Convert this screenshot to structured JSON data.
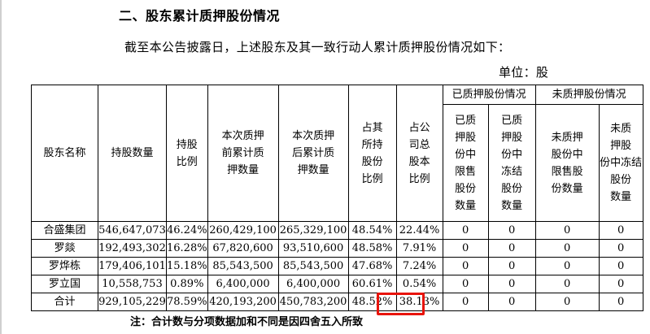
{
  "document": {
    "heading": "二、股东累计质押股份情况",
    "intro": "截至本公告披露日，上述股东及其一致行动人累计质押股份情况如下：",
    "unit": "单位：股",
    "note": "注：合计数与分项数据加和不同是因四舍五入所致"
  },
  "table": {
    "headers": {
      "name": "股东名称",
      "holding": "持股数量",
      "ratio": "持股\n比例",
      "before": "本次质押\n前累计质\n押数量",
      "after": "本次质押\n后累计质\n押数量",
      "own_pct": "占其\n所持\n股份\n比例",
      "total_pct": "占公\n司总\n股本\n比例",
      "pledged_group": "已质押股份情况",
      "pledged_restricted": "已质\n押股\n份中\n限售\n股份\n数量",
      "pledged_frozen": "已质\n押股\n份中\n冻结\n股份\n数量",
      "unpledged_group": "未质押股份情况",
      "unpledged_restricted": "未质押\n股份中\n限售股\n份数量",
      "unpledged_frozen": "未质\n押股\n份中冻结\n股份\n数量"
    },
    "rows": [
      {
        "name": "合盛集团",
        "holding": "546,647,073",
        "ratio": "46.24%",
        "before": "260,429,100",
        "after": "265,329,100",
        "own_pct": "48.54%",
        "total_pct": "22.44%",
        "pr": "0",
        "pf": "0",
        "ur": "0",
        "uf": "0"
      },
      {
        "name": "罗燚",
        "holding": "192,493,302",
        "ratio": "16.28%",
        "before": "67,820,600",
        "after": "93,510,600",
        "own_pct": "48.58%",
        "total_pct": "7.91%",
        "pr": "0",
        "pf": "0",
        "ur": "0",
        "uf": "0"
      },
      {
        "name": "罗烨栋",
        "holding": "179,406,101",
        "ratio": "15.18%",
        "before": "85,543,500",
        "after": "85,543,500",
        "own_pct": "47.68%",
        "total_pct": "7.24%",
        "pr": "0",
        "pf": "0",
        "ur": "0",
        "uf": "0"
      },
      {
        "name": "罗立国",
        "holding": "10,558,753",
        "ratio": "0.89%",
        "before": "6,400,000",
        "after": "6,400,000",
        "own_pct": "60.61%",
        "total_pct": "0.54%",
        "pr": "0",
        "pf": "0",
        "ur": "0",
        "uf": "0"
      },
      {
        "name": "合计",
        "holding": "929,105,229",
        "ratio": "78.59%",
        "before": "420,193,200",
        "after": "450,783,200",
        "own_pct": "48.52%",
        "total_pct": "38.13%",
        "pr": "0",
        "pf": "0",
        "ur": "0",
        "uf": "0"
      }
    ]
  },
  "colors": {
    "highlight_box": "#e8140b"
  }
}
